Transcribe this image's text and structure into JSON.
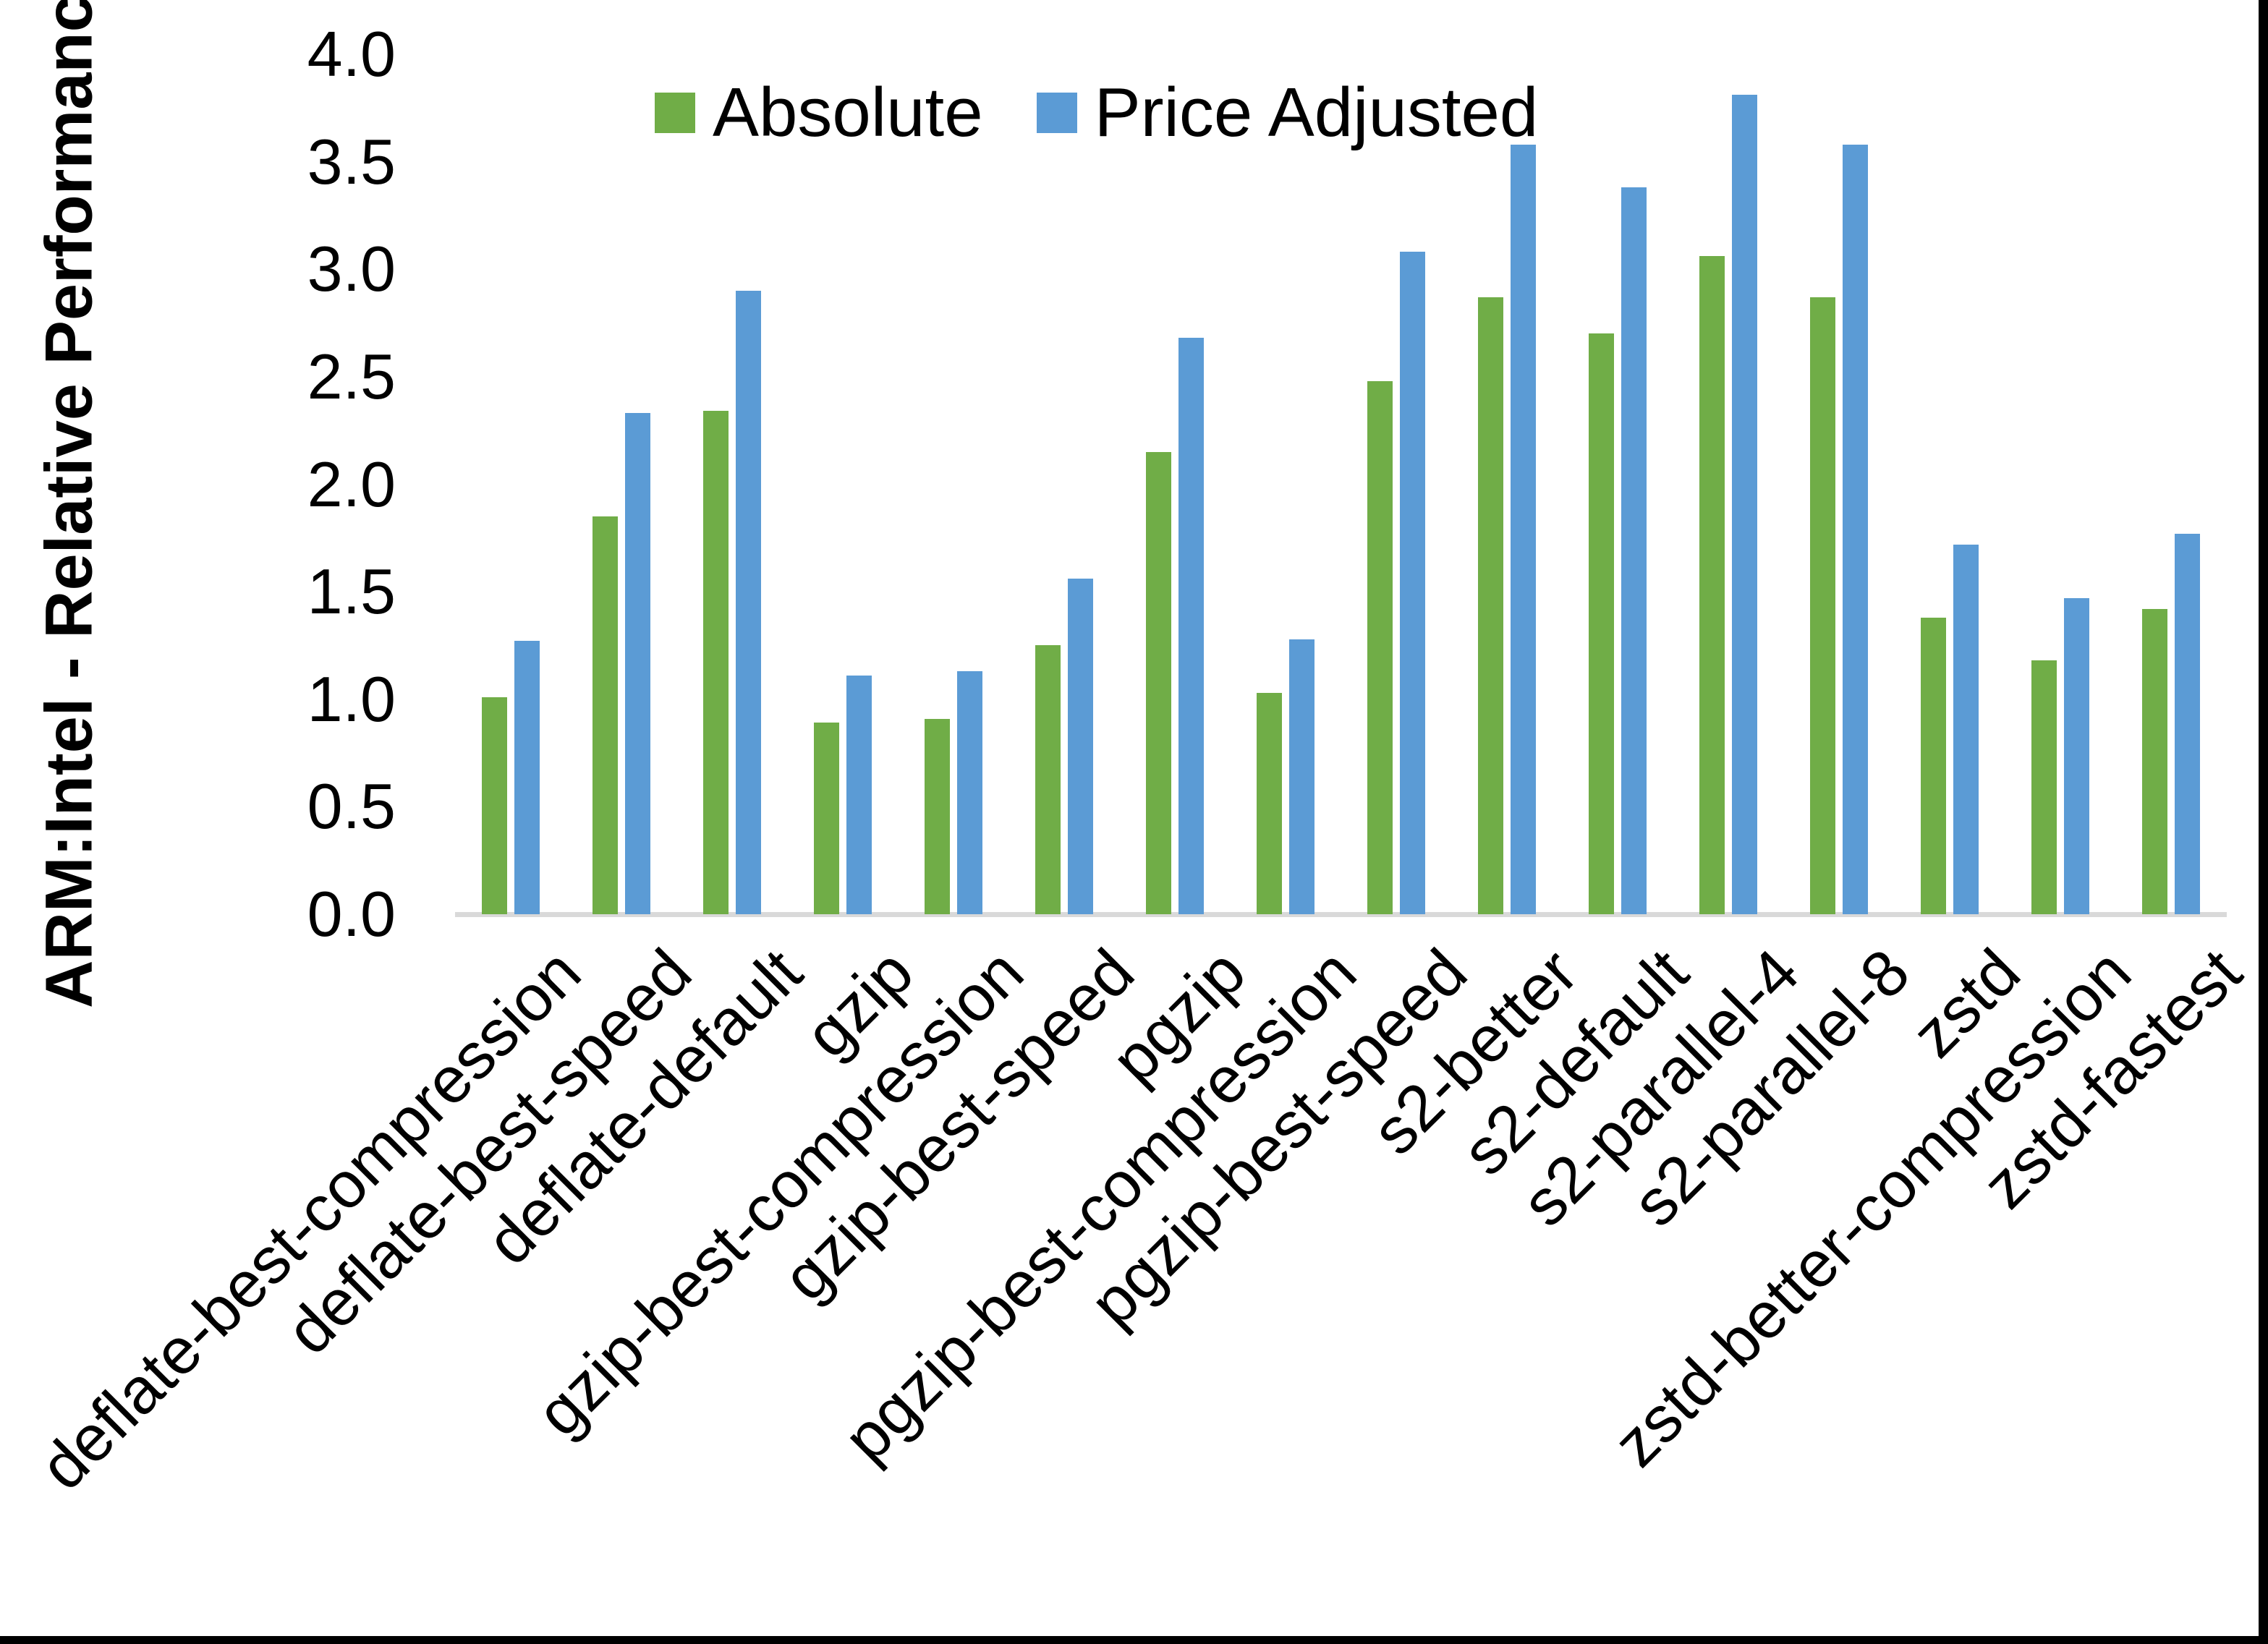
{
  "frame": {
    "background": "#FFFFFF",
    "border_color": "#000000"
  },
  "chart_data": {
    "type": "bar",
    "title": "",
    "xlabel": "",
    "ylabel": "ARM:Intel - Relative Performance",
    "ylim": [
      0.0,
      4.0
    ],
    "ytick_step": 0.5,
    "ytick_labels": [
      "0.0",
      "0.5",
      "1.0",
      "1.5",
      "2.0",
      "2.5",
      "3.0",
      "3.5",
      "4.0"
    ],
    "grid": false,
    "legend_position": "top-center",
    "axis_line_color": "#D9D9D9",
    "text_color": "#000000",
    "categories": [
      "deflate-best-compression",
      "deflate-best-speed",
      "deflate-default",
      "gzip",
      "gzip-best-compression",
      "gzip-best-speed",
      "pgzip",
      "pgzip-best-compression",
      "pgzip-best-speed",
      "s2-better",
      "s2-default",
      "s2-parallel-4",
      "s2-parallel-8",
      "zstd",
      "zstd-better-compression",
      "zstd-fastest"
    ],
    "series": [
      {
        "name": "Absolute",
        "color": "#70AD47",
        "values": [
          1.01,
          1.85,
          2.34,
          0.89,
          0.91,
          1.25,
          2.15,
          1.03,
          2.48,
          2.87,
          2.7,
          3.06,
          2.87,
          1.38,
          1.18,
          1.42
        ]
      },
      {
        "name": "Price Adjusted",
        "color": "#5B9BD5",
        "values": [
          1.27,
          2.33,
          2.9,
          1.11,
          1.13,
          1.56,
          2.68,
          1.28,
          3.08,
          3.58,
          3.38,
          3.81,
          3.58,
          1.72,
          1.47,
          1.77
        ]
      }
    ]
  }
}
